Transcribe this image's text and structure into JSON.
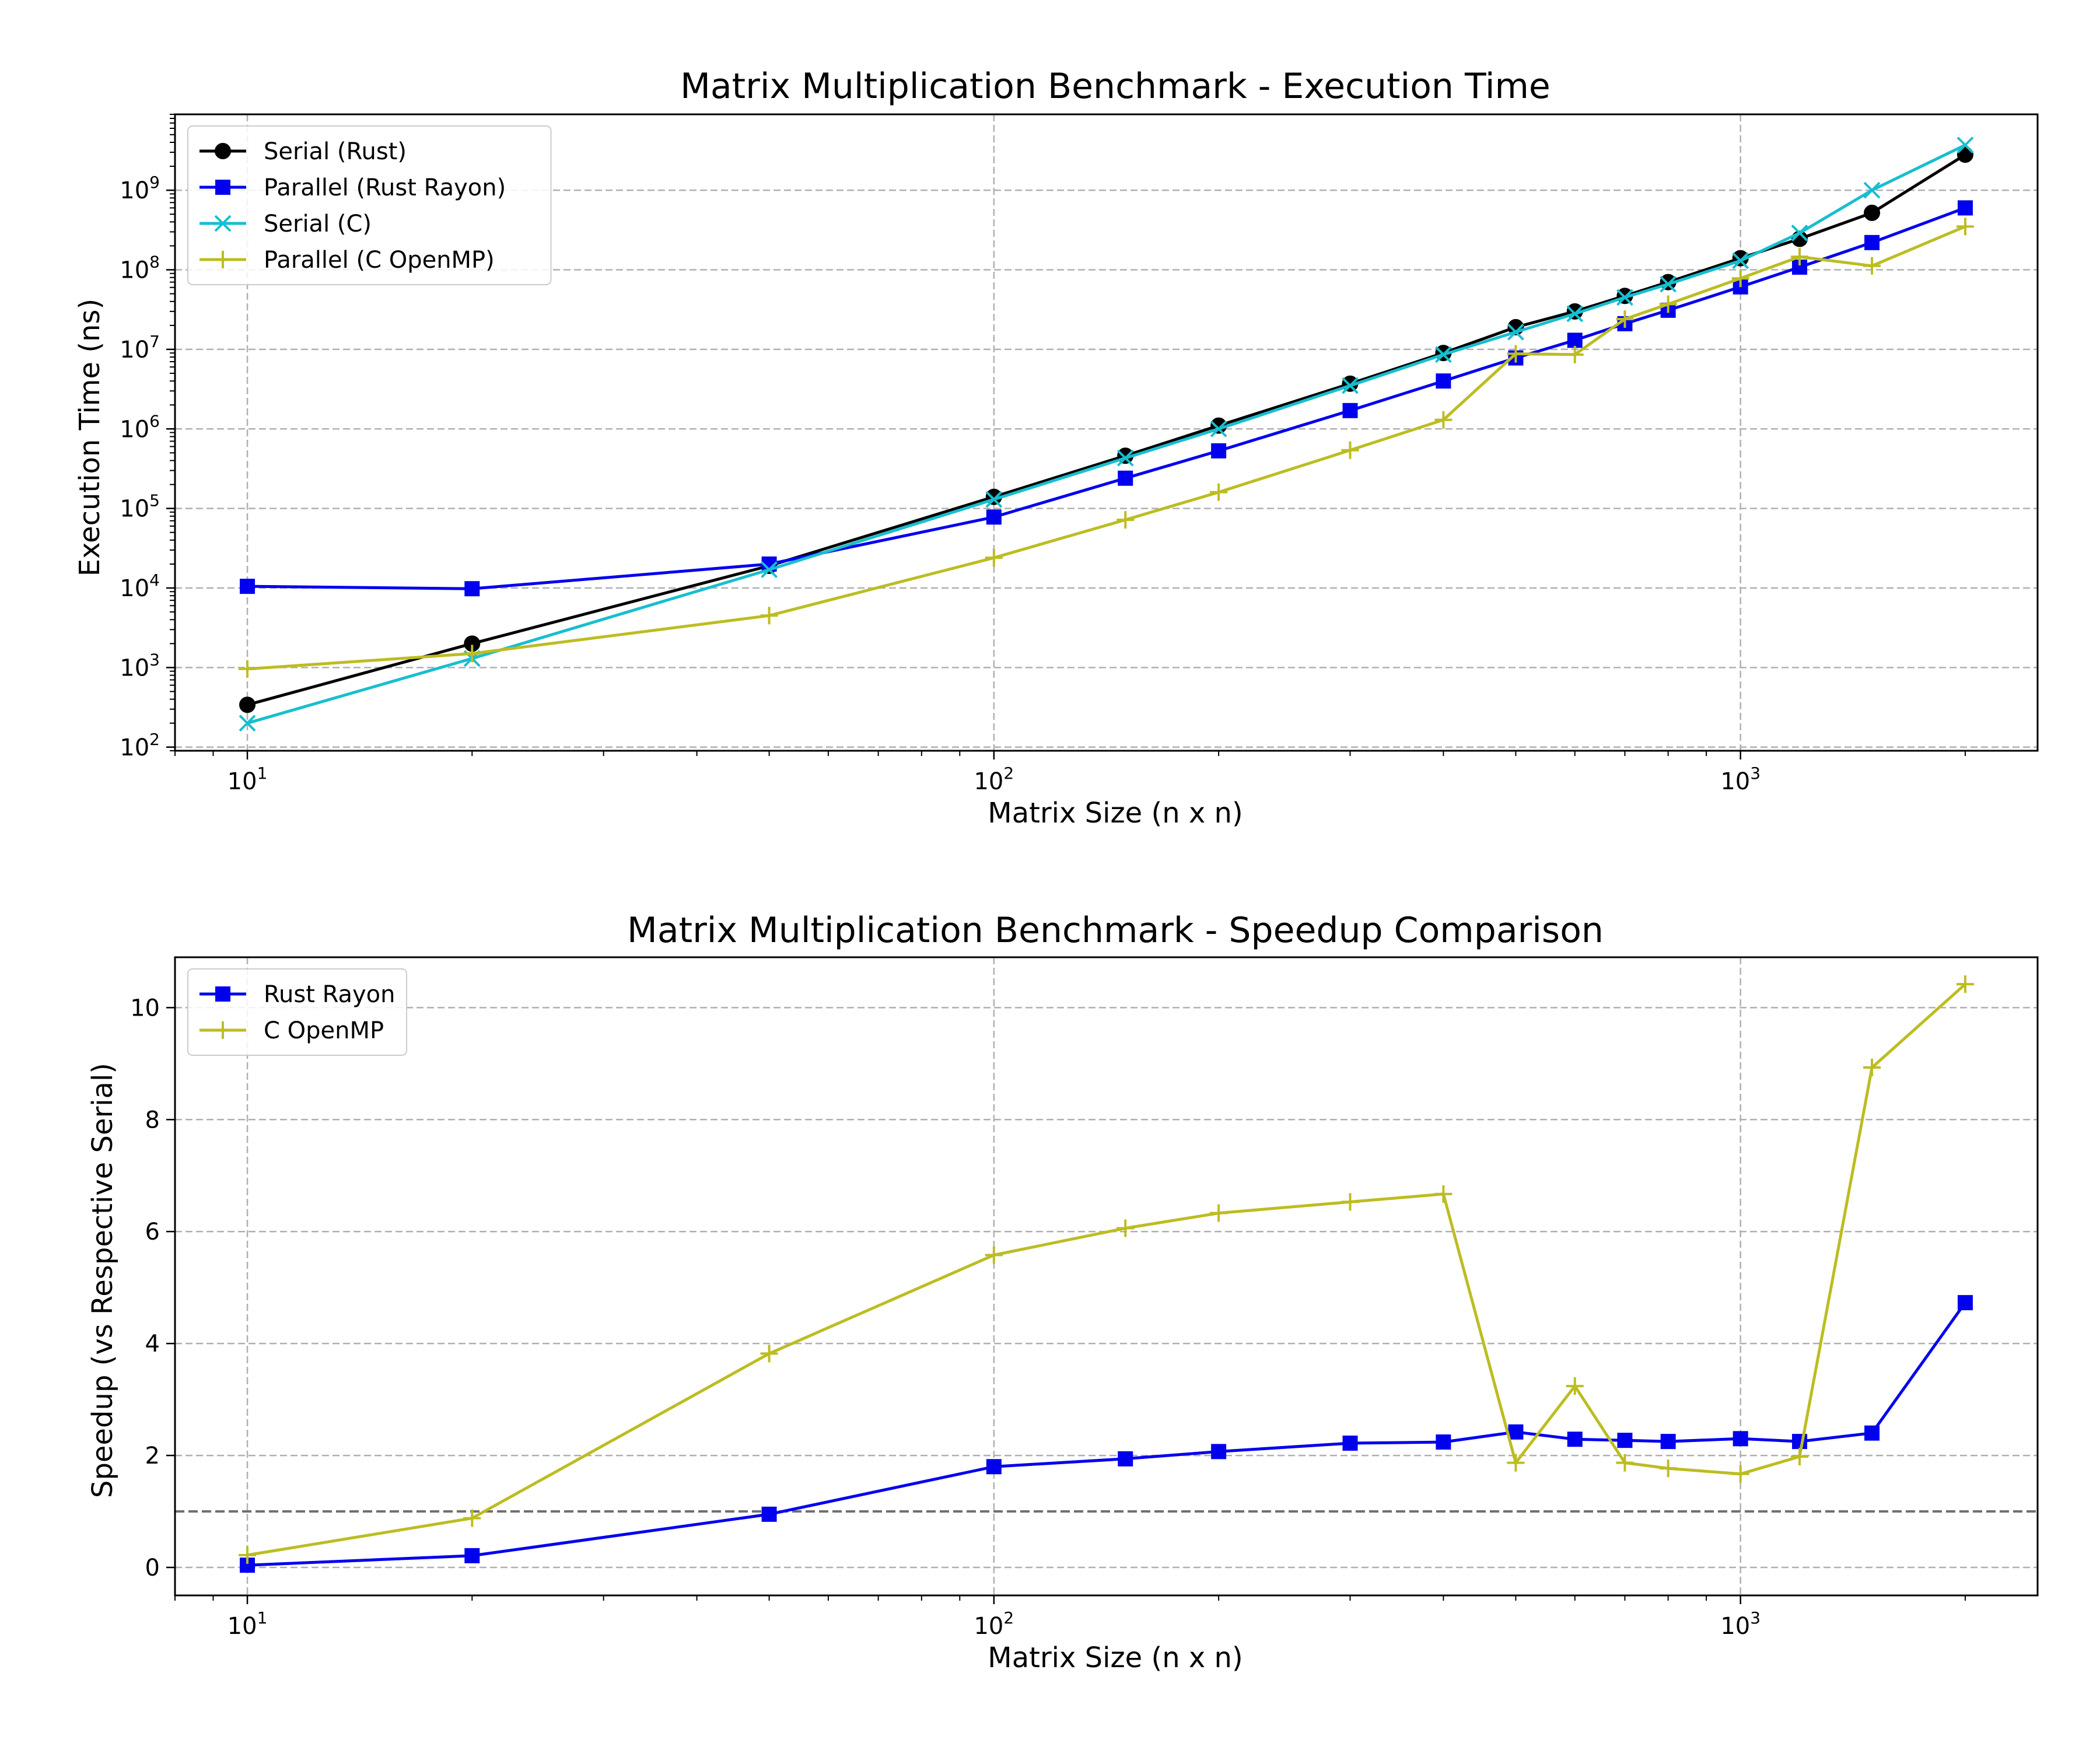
{
  "chart_data": [
    {
      "type": "line",
      "title": "Matrix Multiplication Benchmark - Execution Time",
      "xlabel": "Matrix Size (n x n)",
      "ylabel": "Execution Time (ns)",
      "xscale": "log",
      "yscale": "log",
      "xlim": [
        8,
        2500
      ],
      "ylim": [
        90,
        9000000000
      ],
      "x_ticks": [
        {
          "base": "10",
          "exp": "1",
          "value": 10
        },
        {
          "base": "10",
          "exp": "2",
          "value": 100
        },
        {
          "base": "10",
          "exp": "3",
          "value": 1000
        }
      ],
      "y_ticks": [
        {
          "base": "10",
          "exp": "2",
          "value": 100
        },
        {
          "base": "10",
          "exp": "3",
          "value": 1000
        },
        {
          "base": "10",
          "exp": "4",
          "value": 10000
        },
        {
          "base": "10",
          "exp": "5",
          "value": 100000
        },
        {
          "base": "10",
          "exp": "6",
          "value": 1000000
        },
        {
          "base": "10",
          "exp": "7",
          "value": 10000000
        },
        {
          "base": "10",
          "exp": "8",
          "value": 100000000
        },
        {
          "base": "10",
          "exp": "9",
          "value": 1000000000
        }
      ],
      "grid": true,
      "legend_position": "top-left",
      "x": [
        10,
        20,
        50,
        100,
        150,
        200,
        300,
        400,
        500,
        600,
        700,
        800,
        1000,
        1200,
        1500,
        2000
      ],
      "series": [
        {
          "name": "Serial (Rust)",
          "color": "#000000",
          "marker": "circle",
          "values": [
            340,
            2000,
            19000,
            140000,
            460000,
            1100000,
            3700000,
            9000000,
            19000000,
            30000000,
            47000000,
            70000000,
            140000000,
            245000000,
            520000000,
            2800000000
          ]
        },
        {
          "name": "Parallel (Rust Rayon)",
          "color": "#0000ee",
          "marker": "square",
          "values": [
            10500,
            9800,
            20000,
            78000,
            240000,
            530000,
            1700000,
            4000000,
            7800000,
            13000000,
            21000000,
            31000000,
            61000000,
            108000000,
            220000000,
            600000000
          ]
        },
        {
          "name": "Serial (C)",
          "color": "#17becf",
          "marker": "x",
          "values": [
            200,
            1300,
            17000,
            130000,
            430000,
            1000000,
            3500000,
            8600000,
            16500000,
            28000000,
            45000000,
            66000000,
            130000000,
            290000000,
            1000000000,
            3700000000
          ]
        },
        {
          "name": "Parallel (C OpenMP)",
          "color": "#bcbd22",
          "marker": "plus",
          "values": [
            960,
            1500,
            4500,
            24000,
            72000,
            160000,
            540000,
            1300000,
            8800000,
            8600000,
            24000000,
            37000000,
            78000000,
            146000000,
            112000000,
            350000000
          ]
        }
      ]
    },
    {
      "type": "line",
      "title": "Matrix Multiplication Benchmark - Speedup Comparison",
      "xlabel": "Matrix Size (n x n)",
      "ylabel": "Speedup (vs Respective Serial)",
      "xscale": "log",
      "xlim": [
        8,
        2500
      ],
      "ylim": [
        -0.5,
        10.9
      ],
      "x_ticks": [
        {
          "base": "10",
          "exp": "1",
          "value": 10
        },
        {
          "base": "10",
          "exp": "2",
          "value": 100
        },
        {
          "base": "10",
          "exp": "3",
          "value": 1000
        }
      ],
      "y_ticks": [
        "0",
        "2",
        "4",
        "6",
        "8",
        "10"
      ],
      "grid": true,
      "legend_position": "top-left",
      "reference_line": 1.0,
      "x": [
        10,
        20,
        50,
        100,
        150,
        200,
        300,
        400,
        500,
        600,
        700,
        800,
        1000,
        1200,
        1500,
        2000
      ],
      "series": [
        {
          "name": "Rust Rayon",
          "color": "#0000ee",
          "marker": "square",
          "values": [
            0.04,
            0.21,
            0.95,
            1.8,
            1.94,
            2.07,
            2.22,
            2.24,
            2.42,
            2.29,
            2.27,
            2.25,
            2.3,
            2.25,
            2.4,
            4.73
          ]
        },
        {
          "name": "C OpenMP",
          "color": "#bcbd22",
          "marker": "plus",
          "values": [
            0.22,
            0.88,
            3.82,
            5.58,
            6.06,
            6.33,
            6.53,
            6.67,
            1.87,
            3.24,
            1.87,
            1.77,
            1.67,
            1.98,
            8.93,
            10.42
          ]
        }
      ]
    }
  ]
}
